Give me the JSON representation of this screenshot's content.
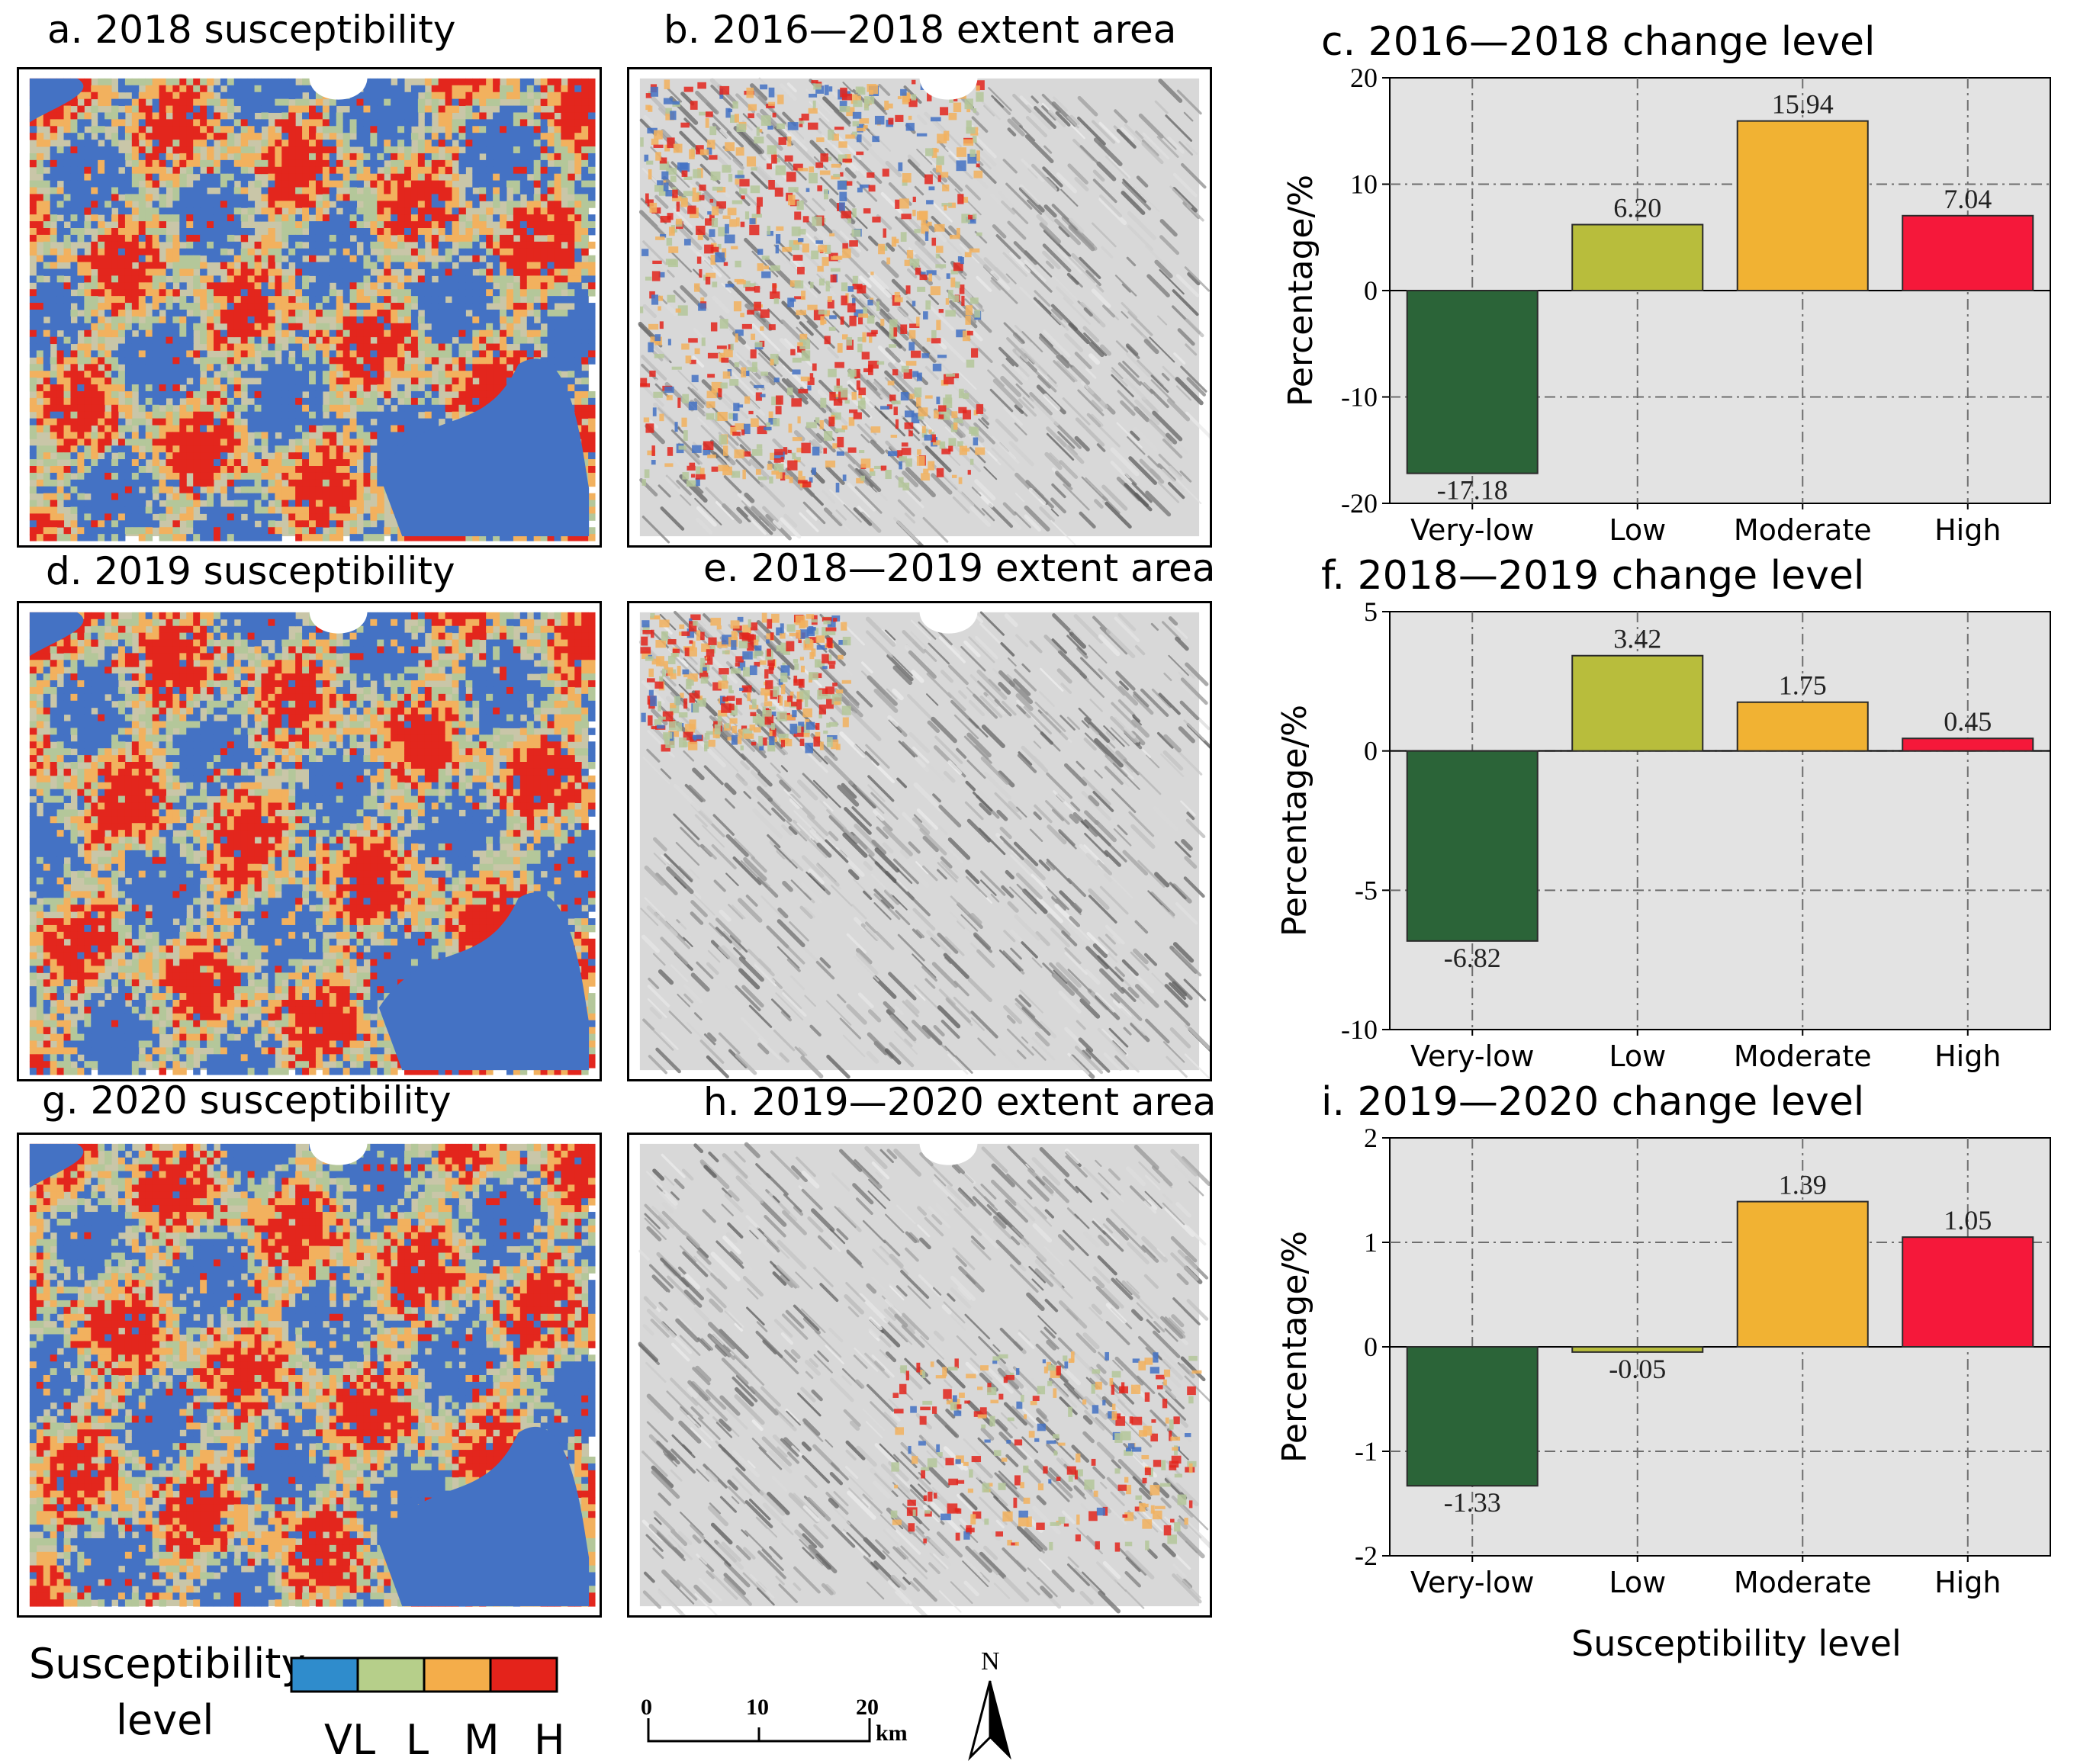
{
  "panels": {
    "a": {
      "title": "a. 2018 susceptibility"
    },
    "b": {
      "title": "b. 2016—2018 extent area"
    },
    "d": {
      "title": "d. 2019 susceptibility"
    },
    "e": {
      "title": "e. 2018—2019 extent area"
    },
    "g": {
      "title": "g. 2020 susceptibility"
    },
    "h": {
      "title": "h. 2019—2020 extent area"
    }
  },
  "colors": {
    "VL": "#4472c4",
    "L": "#b4c79a",
    "M": "#f2b15e",
    "H": "#e3261d",
    "map_base": "#c9c6a8",
    "hillshade": "#d8d8d8",
    "plot_bg": "#e3e3e3",
    "bar_very_low": "#2b6438",
    "bar_low": "#b8bd3c",
    "bar_moderate": "#f1b233",
    "bar_high": "#f5183a"
  },
  "legend": {
    "title_line1": "Susceptibility",
    "title_line2": "level",
    "codes": [
      "VL",
      "L",
      "M",
      "H"
    ],
    "swatch_colors": [
      "#2f8ccc",
      "#b6cf8a",
      "#f4ad4a",
      "#e4231b"
    ]
  },
  "scale_bar": {
    "ticks": [
      "0",
      "10",
      "20"
    ],
    "unit": "km"
  },
  "north_arrow": {
    "label": "N"
  },
  "shared_xlabel": "Susceptibility level",
  "chart_data": [
    {
      "type": "bar",
      "title": "c. 2016—2018 change level",
      "categories": [
        "Very-low",
        "Low",
        "Moderate",
        "High"
      ],
      "values": [
        -17.18,
        6.2,
        15.94,
        7.04
      ],
      "value_labels": [
        "-17.18",
        "6.20",
        "15.94",
        "7.04"
      ],
      "ylabel": "Percentage/%",
      "xlabel": "",
      "ylim": [
        -20,
        20
      ],
      "yticks": [
        -20,
        -10,
        0,
        10,
        20
      ],
      "ytick_labels": [
        "-20",
        "-10",
        "0",
        "10",
        "20"
      ],
      "grid": true
    },
    {
      "type": "bar",
      "title": "f. 2018—2019 change level",
      "categories": [
        "Very-low",
        "Low",
        "Moderate",
        "High"
      ],
      "values": [
        -6.82,
        3.42,
        1.75,
        0.45
      ],
      "value_labels": [
        "-6.82",
        "3.42",
        "1.75",
        "0.45"
      ],
      "ylabel": "Percentage/%",
      "xlabel": "",
      "ylim": [
        -10,
        5
      ],
      "yticks": [
        -10,
        -5,
        0,
        5
      ],
      "ytick_labels": [
        "-10",
        "-5",
        "0",
        "5"
      ],
      "grid": true
    },
    {
      "type": "bar",
      "title": "i. 2019—2020 change level",
      "categories": [
        "Very-low",
        "Low",
        "Moderate",
        "High"
      ],
      "values": [
        -1.33,
        -0.05,
        1.39,
        1.05
      ],
      "value_labels": [
        "-1.33",
        "-0.05",
        "1.39",
        "1.05"
      ],
      "ylabel": "Percentage/%",
      "xlabel": "Susceptibility level",
      "ylim": [
        -2,
        2
      ],
      "yticks": [
        -2,
        -1,
        0,
        1,
        2
      ],
      "ytick_labels": [
        "-2",
        "-1",
        "0",
        "1",
        "2"
      ],
      "grid": true
    }
  ]
}
